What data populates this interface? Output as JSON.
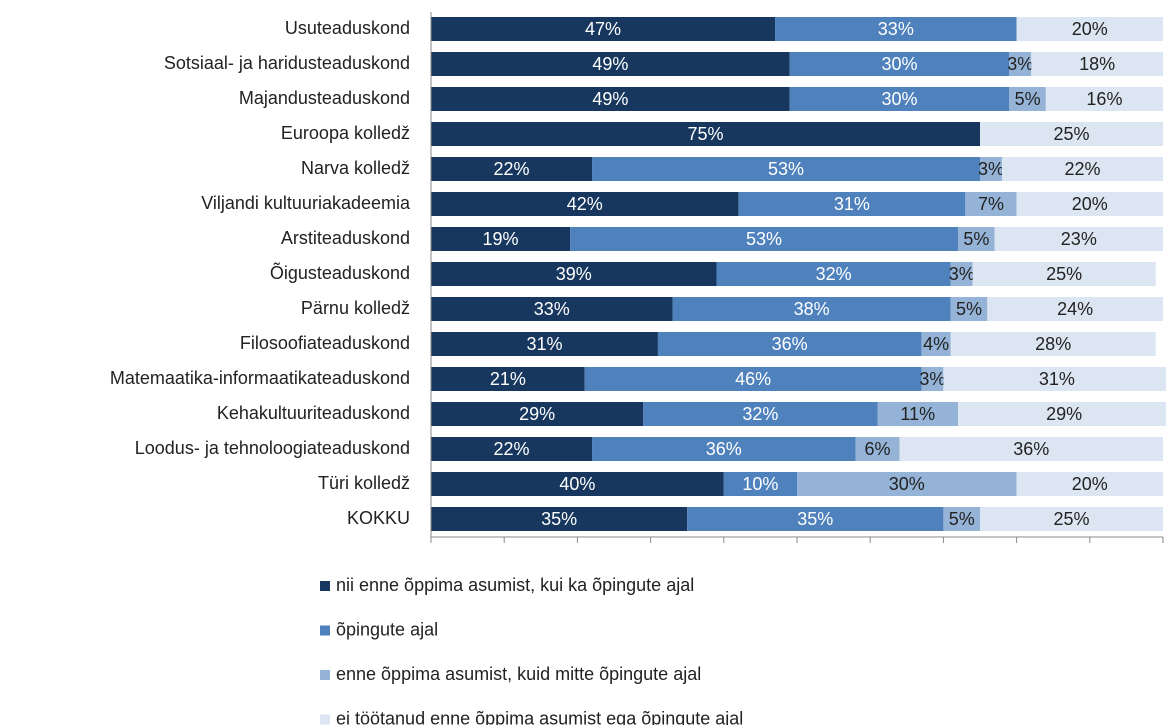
{
  "chart_data": {
    "type": "stacked-bar-horizontal",
    "categories": [
      "Usuteaduskond",
      "Sotsiaal- ja haridusteaduskond",
      "Majandusteaduskond",
      "Euroopa kolledž",
      "Narva kolledž",
      "Viljandi kultuuriakadeemia",
      "Arstiteaduskond",
      "Õigusteaduskond",
      "Pärnu kolledž",
      "Filosoofiateaduskond",
      "Matemaatika-informaatikateaduskond",
      "Kehakultuuriteaduskond",
      "Loodus- ja tehnoloogiateaduskond",
      "Türi kolledž",
      "KOKKU"
    ],
    "series": [
      {
        "name": "nii enne õppima asumist, kui ka õpingute ajal",
        "color": "#17375e",
        "label_color": "#ffffff",
        "values": [
          47,
          49,
          49,
          75,
          22,
          42,
          19,
          39,
          33,
          31,
          21,
          29,
          22,
          40,
          35
        ],
        "value_labels": [
          "47%",
          "49%",
          "49%",
          "75%",
          "22%",
          "42%",
          "19%",
          "39%",
          "33%",
          "31%",
          "21%",
          "29%",
          "22%",
          "40%",
          "35%"
        ]
      },
      {
        "name": "õpingute ajal",
        "color": "#4f81bd",
        "label_color": "#ffffff",
        "values": [
          33,
          30,
          30,
          null,
          53,
          31,
          53,
          32,
          38,
          36,
          46,
          32,
          36,
          10,
          35
        ],
        "value_labels": [
          "33%",
          "30%",
          "30%",
          null,
          "53%",
          "31%",
          "53%",
          "32%",
          "38%",
          "36%",
          "46%",
          "32%",
          "36%",
          "10%",
          "35%"
        ]
      },
      {
        "name": "enne õppima asumist, kuid mitte õpingute ajal",
        "color": "#95b3d7",
        "label_color": "#222222",
        "values": [
          null,
          3,
          5,
          null,
          3,
          7,
          5,
          3,
          5,
          4,
          3,
          11,
          6,
          30,
          5
        ],
        "value_labels": [
          null,
          "3%",
          "5%",
          null,
          "3%",
          "7%",
          "5%",
          "3%",
          "5%",
          "4%",
          "3%",
          "11%",
          "6%",
          "30%",
          "5%"
        ]
      },
      {
        "name": "ei töötanud enne õppima asumist ega õpingute ajal",
        "color": "#dce6f2",
        "label_color": "#222222",
        "values": [
          20,
          18,
          16,
          25,
          22,
          20,
          23,
          25,
          24,
          28,
          31,
          29,
          36,
          20,
          25
        ],
        "value_labels": [
          "20%",
          "18%",
          "16%",
          "25%",
          "22%",
          "20%",
          "23%",
          "25%",
          "24%",
          "28%",
          "31%",
          "29%",
          "36%",
          "20%",
          "25%"
        ]
      }
    ],
    "xlim": [
      0,
      100
    ],
    "xticks": [
      0,
      10,
      20,
      30,
      40,
      50,
      60,
      70,
      80,
      90,
      100
    ]
  }
}
